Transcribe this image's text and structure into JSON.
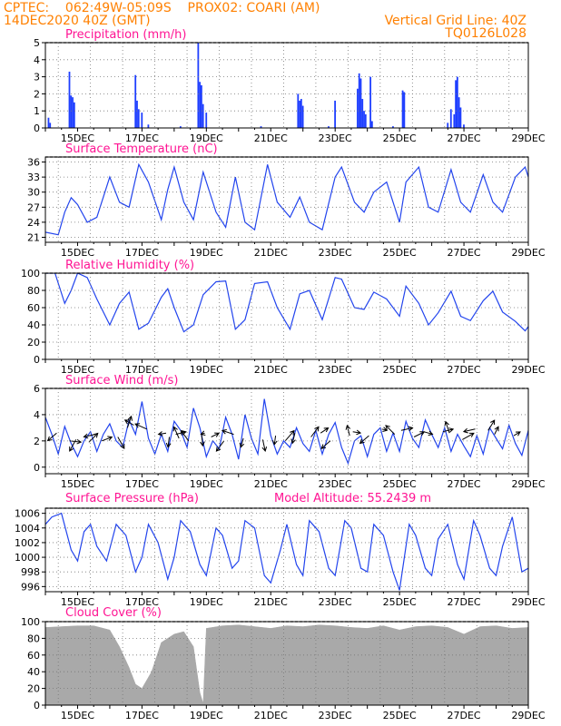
{
  "header": {
    "line1_left": "CPTEC:    062:49W-05:09S    PROX02: COARI (AM)",
    "line2_left": "14DEC2020 40Z (GMT)",
    "line2_right": "Vertical Grid Line: 40Z",
    "line3_right": "TQ0126L028"
  },
  "chart_data": [
    {
      "type": "bar",
      "title": "Precipitation (mm/h)",
      "ylim": [
        0,
        5
      ],
      "yticks": [
        0,
        1,
        2,
        3,
        4,
        5
      ],
      "xlim": [
        14.0,
        29.0
      ],
      "x_tick_labels": [
        "15DEC",
        "17DEC",
        "19DEC",
        "21DEC",
        "23DEC",
        "25DEC",
        "27DEC",
        "29DEC"
      ],
      "bars": [
        [
          14.1,
          0.6
        ],
        [
          14.15,
          0.3
        ],
        [
          14.75,
          3.3
        ],
        [
          14.8,
          1.9
        ],
        [
          14.85,
          1.8
        ],
        [
          14.9,
          1.5
        ],
        [
          16.8,
          3.1
        ],
        [
          16.85,
          1.6
        ],
        [
          16.9,
          1.1
        ],
        [
          17.0,
          0.9
        ],
        [
          17.2,
          0.2
        ],
        [
          18.2,
          0.1
        ],
        [
          18.75,
          5.0
        ],
        [
          18.8,
          2.7
        ],
        [
          18.85,
          2.5
        ],
        [
          18.9,
          1.4
        ],
        [
          19.0,
          0.9
        ],
        [
          20.7,
          0.1
        ],
        [
          21.85,
          2.0
        ],
        [
          21.9,
          1.6
        ],
        [
          21.95,
          1.7
        ],
        [
          22.0,
          1.3
        ],
        [
          22.8,
          0.1
        ],
        [
          23.0,
          1.6
        ],
        [
          23.7,
          2.3
        ],
        [
          23.75,
          3.2
        ],
        [
          23.8,
          2.9
        ],
        [
          23.85,
          1.7
        ],
        [
          23.9,
          1.0
        ],
        [
          23.95,
          0.8
        ],
        [
          24.1,
          3.0
        ],
        [
          24.15,
          0.4
        ],
        [
          24.8,
          0.1
        ],
        [
          25.1,
          2.2
        ],
        [
          25.15,
          2.1
        ],
        [
          26.5,
          0.3
        ],
        [
          26.6,
          1.1
        ],
        [
          26.7,
          0.8
        ],
        [
          26.75,
          2.8
        ],
        [
          26.8,
          3.0
        ],
        [
          26.85,
          1.8
        ],
        [
          26.9,
          1.2
        ],
        [
          27.0,
          0.2
        ]
      ]
    },
    {
      "type": "line",
      "title": "Surface Temperature (nC)",
      "ylim": [
        20,
        37
      ],
      "yticks": [
        21,
        24,
        27,
        30,
        33,
        36
      ],
      "xlim": [
        14.0,
        29.0
      ],
      "x_tick_labels": [
        "15DEC",
        "17DEC",
        "19DEC",
        "21DEC",
        "23DEC",
        "25DEC",
        "27DEC",
        "29DEC"
      ],
      "x": [
        14.0,
        14.4,
        14.6,
        14.8,
        15.0,
        15.3,
        15.6,
        16.0,
        16.3,
        16.6,
        16.9,
        17.2,
        17.6,
        17.8,
        18.0,
        18.3,
        18.6,
        18.9,
        19.3,
        19.6,
        19.9,
        20.2,
        20.5,
        20.9,
        21.2,
        21.6,
        21.9,
        22.2,
        22.6,
        23.0,
        23.2,
        23.6,
        23.9,
        24.2,
        24.6,
        25.0,
        25.2,
        25.6,
        25.9,
        26.2,
        26.6,
        26.9,
        27.2,
        27.6,
        27.9,
        28.2,
        28.6,
        28.9,
        29.0
      ],
      "y": [
        22.0,
        21.5,
        26.0,
        28.9,
        27.5,
        24.0,
        25.0,
        33.0,
        28.0,
        27.0,
        35.5,
        32.0,
        24.5,
        30.5,
        35.0,
        28.0,
        24.5,
        34.0,
        26.0,
        23.0,
        33.0,
        24.0,
        22.5,
        35.5,
        28.0,
        25.0,
        29.0,
        24.0,
        22.5,
        33.0,
        35.0,
        28.0,
        26.0,
        30.0,
        32.0,
        24.0,
        32.0,
        35.0,
        27.0,
        26.0,
        34.5,
        28.0,
        26.0,
        33.5,
        28.0,
        26.0,
        33.0,
        35.0,
        33.0
      ]
    },
    {
      "type": "line",
      "title": "Relative Humidity (%)",
      "ylim": [
        0,
        100
      ],
      "yticks": [
        0,
        20,
        40,
        60,
        80,
        100
      ],
      "xlim": [
        14.0,
        29.0
      ],
      "x_tick_labels": [
        "15DEC",
        "17DEC",
        "19DEC",
        "21DEC",
        "23DEC",
        "25DEC",
        "27DEC",
        "29DEC"
      ],
      "x": [
        14.0,
        14.3,
        14.6,
        14.8,
        15.0,
        15.3,
        15.6,
        16.0,
        16.3,
        16.6,
        16.9,
        17.2,
        17.6,
        17.8,
        18.0,
        18.3,
        18.6,
        18.9,
        19.3,
        19.6,
        19.9,
        20.2,
        20.5,
        20.9,
        21.2,
        21.6,
        21.9,
        22.2,
        22.6,
        23.0,
        23.2,
        23.6,
        23.9,
        24.2,
        24.6,
        25.0,
        25.2,
        25.6,
        25.9,
        26.2,
        26.6,
        26.9,
        27.2,
        27.6,
        27.9,
        28.2,
        28.6,
        28.9,
        29.0
      ],
      "y": [
        100,
        100,
        65,
        80,
        100,
        95,
        70,
        40,
        65,
        78,
        35,
        42,
        72,
        82,
        60,
        32,
        40,
        75,
        90,
        91,
        35,
        46,
        88,
        90,
        60,
        35,
        76,
        80,
        46,
        95,
        93,
        60,
        58,
        78,
        70,
        50,
        85,
        65,
        40,
        54,
        79,
        50,
        45,
        68,
        79,
        55,
        44,
        33,
        38
      ]
    },
    {
      "type": "line",
      "title": "Surface Wind (m/s)",
      "ylim": [
        -0.5,
        6
      ],
      "yticks": [
        0,
        2,
        4,
        6
      ],
      "xlim": [
        14.0,
        29.0
      ],
      "x_tick_labels": [
        "15DEC",
        "17DEC",
        "19DEC",
        "21DEC",
        "23DEC",
        "25DEC",
        "27DEC",
        "29DEC"
      ],
      "x": [
        14.0,
        14.2,
        14.4,
        14.6,
        14.8,
        15.0,
        15.2,
        15.4,
        15.6,
        15.8,
        16.0,
        16.2,
        16.4,
        16.6,
        16.8,
        17.0,
        17.2,
        17.4,
        17.6,
        17.8,
        18.0,
        18.2,
        18.4,
        18.6,
        18.8,
        19.0,
        19.2,
        19.4,
        19.6,
        19.8,
        20.0,
        20.2,
        20.4,
        20.6,
        20.8,
        21.0,
        21.2,
        21.4,
        21.6,
        21.8,
        22.0,
        22.2,
        22.4,
        22.6,
        22.8,
        23.0,
        23.2,
        23.4,
        23.6,
        23.8,
        24.0,
        24.2,
        24.4,
        24.6,
        24.8,
        25.0,
        25.2,
        25.4,
        25.6,
        25.8,
        26.0,
        26.2,
        26.4,
        26.6,
        26.8,
        27.0,
        27.2,
        27.4,
        27.6,
        27.8,
        28.0,
        28.2,
        28.4,
        28.6,
        28.8,
        29.0
      ],
      "y": [
        3.8,
        2.5,
        1.0,
        3.1,
        1.8,
        0.8,
        2.0,
        2.7,
        1.2,
        2.5,
        3.3,
        2.0,
        1.5,
        3.6,
        2.5,
        5.0,
        2.2,
        1.0,
        2.5,
        1.2,
        3.5,
        2.8,
        1.5,
        4.5,
        3.0,
        0.8,
        2.0,
        1.4,
        3.8,
        2.5,
        0.6,
        4.0,
        2.2,
        1.0,
        5.2,
        2.4,
        1.0,
        2.0,
        1.5,
        3.0,
        1.8,
        1.2,
        2.8,
        1.0,
        2.5,
        3.4,
        1.5,
        0.3,
        2.0,
        2.4,
        0.8,
        2.5,
        3.0,
        1.2,
        2.6,
        1.2,
        3.5,
        2.2,
        1.5,
        3.6,
        2.5,
        1.5,
        3.0,
        1.2,
        2.5,
        1.6,
        0.8,
        2.4,
        1.0,
        3.0,
        2.2,
        1.4,
        3.2,
        1.8,
        0.9,
        2.8
      ],
      "vectors": [
        [
          14.35,
          2.6,
          -0.7,
          -0.6
        ],
        [
          14.75,
          2.0,
          0.9,
          -0.1
        ],
        [
          14.95,
          2.1,
          -0.5,
          -0.9
        ],
        [
          15.35,
          1.9,
          0.7,
          0.7
        ],
        [
          15.55,
          2.5,
          -0.9,
          -0.2
        ],
        [
          15.75,
          2.0,
          0.8,
          0.3
        ],
        [
          16.25,
          2.3,
          0.5,
          -0.9
        ],
        [
          16.55,
          3.0,
          0.3,
          0.9
        ],
        [
          16.75,
          3.2,
          -0.7,
          0.4
        ],
        [
          17.15,
          2.9,
          -0.9,
          0.4
        ],
        [
          17.75,
          2.6,
          -0.6,
          -0.1
        ],
        [
          17.85,
          2.3,
          -0.1,
          -0.8
        ],
        [
          18.05,
          2.5,
          0.8,
          0.2
        ],
        [
          18.15,
          2.2,
          -0.4,
          0.9
        ],
        [
          18.45,
          2.0,
          -0.6,
          0.8
        ],
        [
          18.85,
          2.5,
          0.1,
          -0.9
        ],
        [
          18.95,
          2.6,
          -0.3,
          -0.1
        ],
        [
          19.15,
          2.3,
          0.6,
          0.3
        ],
        [
          19.55,
          2.0,
          -0.6,
          -0.8
        ],
        [
          19.85,
          2.5,
          -0.9,
          0.3
        ],
        [
          20.15,
          2.2,
          -0.2,
          -0.7
        ],
        [
          20.75,
          2.1,
          0.2,
          -0.9
        ],
        [
          21.15,
          2.4,
          -0.1,
          -0.7
        ],
        [
          21.45,
          2.0,
          0.7,
          0.8
        ],
        [
          21.75,
          2.6,
          -0.2,
          -0.8
        ],
        [
          22.25,
          2.3,
          0.6,
          0.8
        ],
        [
          22.55,
          2.6,
          0.6,
          0.4
        ],
        [
          22.85,
          2.0,
          -0.7,
          -0.6
        ],
        [
          23.45,
          2.4,
          -0.2,
          0.8
        ],
        [
          23.55,
          2.7,
          0.6,
          -0.1
        ],
        [
          24.05,
          2.4,
          -0.7,
          -0.6
        ],
        [
          24.45,
          2.9,
          0.4,
          -0.1
        ],
        [
          24.85,
          2.5,
          -0.7,
          0.7
        ],
        [
          25.05,
          2.8,
          0.9,
          0.2
        ],
        [
          25.45,
          2.3,
          0.8,
          0.4
        ],
        [
          25.75,
          2.7,
          0.7,
          -0.2
        ],
        [
          26.35,
          2.7,
          0.8,
          0.2
        ],
        [
          26.55,
          2.6,
          -0.3,
          0.9
        ],
        [
          26.95,
          2.1,
          0.9,
          0.5
        ],
        [
          27.35,
          2.9,
          -0.9,
          -0.2
        ],
        [
          27.75,
          2.8,
          0.5,
          0.8
        ],
        [
          27.95,
          2.5,
          0.3,
          0.6
        ],
        [
          28.55,
          2.4,
          0.5,
          0.3
        ]
      ]
    },
    {
      "type": "line",
      "title": "Surface Pressure (hPa)",
      "annotation": "Model Altitude: 55.2439 m",
      "ylim": [
        995.3,
        1006.7
      ],
      "yticks": [
        996,
        998,
        1000,
        1002,
        1004,
        1006
      ],
      "xlim": [
        14.0,
        29.0
      ],
      "x_tick_labels": [
        "15DEC",
        "17DEC",
        "19DEC",
        "21DEC",
        "23DEC",
        "25DEC",
        "27DEC",
        "29DEC"
      ],
      "x": [
        14.0,
        14.2,
        14.5,
        14.8,
        15.0,
        15.2,
        15.4,
        15.6,
        15.9,
        16.2,
        16.5,
        16.8,
        17.0,
        17.2,
        17.5,
        17.8,
        18.0,
        18.2,
        18.5,
        18.8,
        19.0,
        19.3,
        19.5,
        19.8,
        20.0,
        20.2,
        20.5,
        20.8,
        21.0,
        21.3,
        21.5,
        21.8,
        22.0,
        22.2,
        22.5,
        22.8,
        23.0,
        23.3,
        23.5,
        23.8,
        24.0,
        24.2,
        24.5,
        24.8,
        25.0,
        25.3,
        25.5,
        25.8,
        26.0,
        26.2,
        26.5,
        26.8,
        27.0,
        27.3,
        27.5,
        27.8,
        28.0,
        28.2,
        28.5,
        28.8,
        29.0
      ],
      "y": [
        1004.5,
        1005.5,
        1006.0,
        1001.0,
        999.5,
        1003.5,
        1004.5,
        1001.5,
        999.5,
        1004.5,
        1003.0,
        998.0,
        1000.0,
        1004.5,
        1002.0,
        997.0,
        1000.0,
        1005.0,
        1003.5,
        999.0,
        997.5,
        1004.0,
        1003.0,
        998.5,
        999.5,
        1005.0,
        1004.0,
        997.5,
        996.5,
        1001.0,
        1004.5,
        999.0,
        997.5,
        1005.0,
        1003.5,
        998.5,
        997.5,
        1005.0,
        1004.0,
        998.5,
        998.0,
        1004.5,
        1003.0,
        998.0,
        995.5,
        1004.5,
        1003.0,
        998.5,
        997.5,
        1002.5,
        1004.5,
        999.0,
        997.0,
        1005.0,
        1003.0,
        998.5,
        997.5,
        1001.5,
        1005.5,
        998.0,
        998.5
      ]
    },
    {
      "type": "bar",
      "title": "Cloud Cover (%)",
      "ylim": [
        0,
        100
      ],
      "yticks": [
        0,
        20,
        40,
        60,
        80,
        100
      ],
      "xlim": [
        14.0,
        29.0
      ],
      "x_tick_labels": [
        "15DEC",
        "17DEC",
        "19DEC",
        "21DEC",
        "23DEC",
        "25DEC",
        "27DEC",
        "29DEC"
      ],
      "x": [
        14.0,
        14.5,
        15.0,
        15.5,
        16.0,
        16.3,
        16.6,
        16.8,
        17.0,
        17.3,
        17.6,
        18.0,
        18.3,
        18.6,
        18.8,
        18.9,
        19.0,
        19.5,
        20.0,
        20.5,
        21.0,
        21.5,
        22.0,
        22.5,
        23.0,
        23.5,
        24.0,
        24.5,
        25.0,
        25.5,
        26.0,
        26.5,
        27.0,
        27.5,
        28.0,
        28.5,
        29.0
      ],
      "y": [
        93,
        94,
        95,
        95,
        90,
        70,
        45,
        25,
        20,
        40,
        75,
        85,
        88,
        70,
        15,
        2,
        92,
        95,
        96,
        94,
        92,
        95,
        94,
        96,
        95,
        93,
        92,
        95,
        90,
        94,
        95,
        93,
        85,
        94,
        95,
        92,
        93
      ]
    }
  ]
}
